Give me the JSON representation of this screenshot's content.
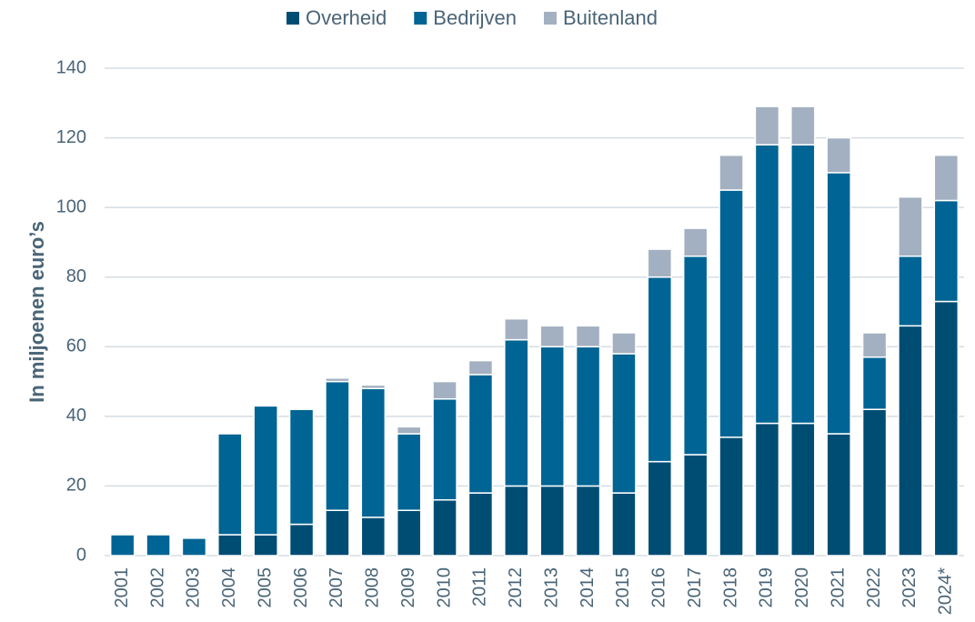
{
  "chart_data": {
    "type": "stacked_bar",
    "y_label": "In miljoenen euro’s",
    "categories": [
      "2001",
      "2002",
      "2003",
      "2004",
      "2005",
      "2006",
      "2007",
      "2008",
      "2009",
      "2010",
      "2011",
      "2012",
      "2013",
      "2014",
      "2015",
      "2016",
      "2017",
      "2018",
      "2019",
      "2020",
      "2021",
      "2022",
      "2023",
      "2024*"
    ],
    "series": [
      {
        "name": "Overheid",
        "color": "#004d74",
        "values": [
          0,
          0,
          0,
          6,
          6,
          9,
          13,
          11,
          13,
          16,
          18,
          20,
          20,
          20,
          18,
          27,
          29,
          34,
          38,
          38,
          35,
          42,
          66,
          73
        ]
      },
      {
        "name": "Bedrijven",
        "color": "#006494",
        "values": [
          6,
          6,
          5,
          29,
          37,
          33,
          37,
          37,
          22,
          29,
          34,
          42,
          40,
          40,
          40,
          53,
          57,
          71,
          80,
          80,
          75,
          15,
          20,
          29
        ]
      },
      {
        "name": "Buitenland",
        "color": "#a3b0c1",
        "values": [
          0,
          0,
          0,
          0,
          0,
          0,
          1,
          1,
          2,
          5,
          4,
          6,
          6,
          6,
          6,
          8,
          8,
          10,
          11,
          11,
          10,
          7,
          17,
          13
        ]
      }
    ],
    "ylim": [
      0,
      140
    ],
    "yticks": [
      0,
      20,
      40,
      60,
      80,
      100,
      120,
      140
    ],
    "grid": true,
    "legend": "top"
  }
}
